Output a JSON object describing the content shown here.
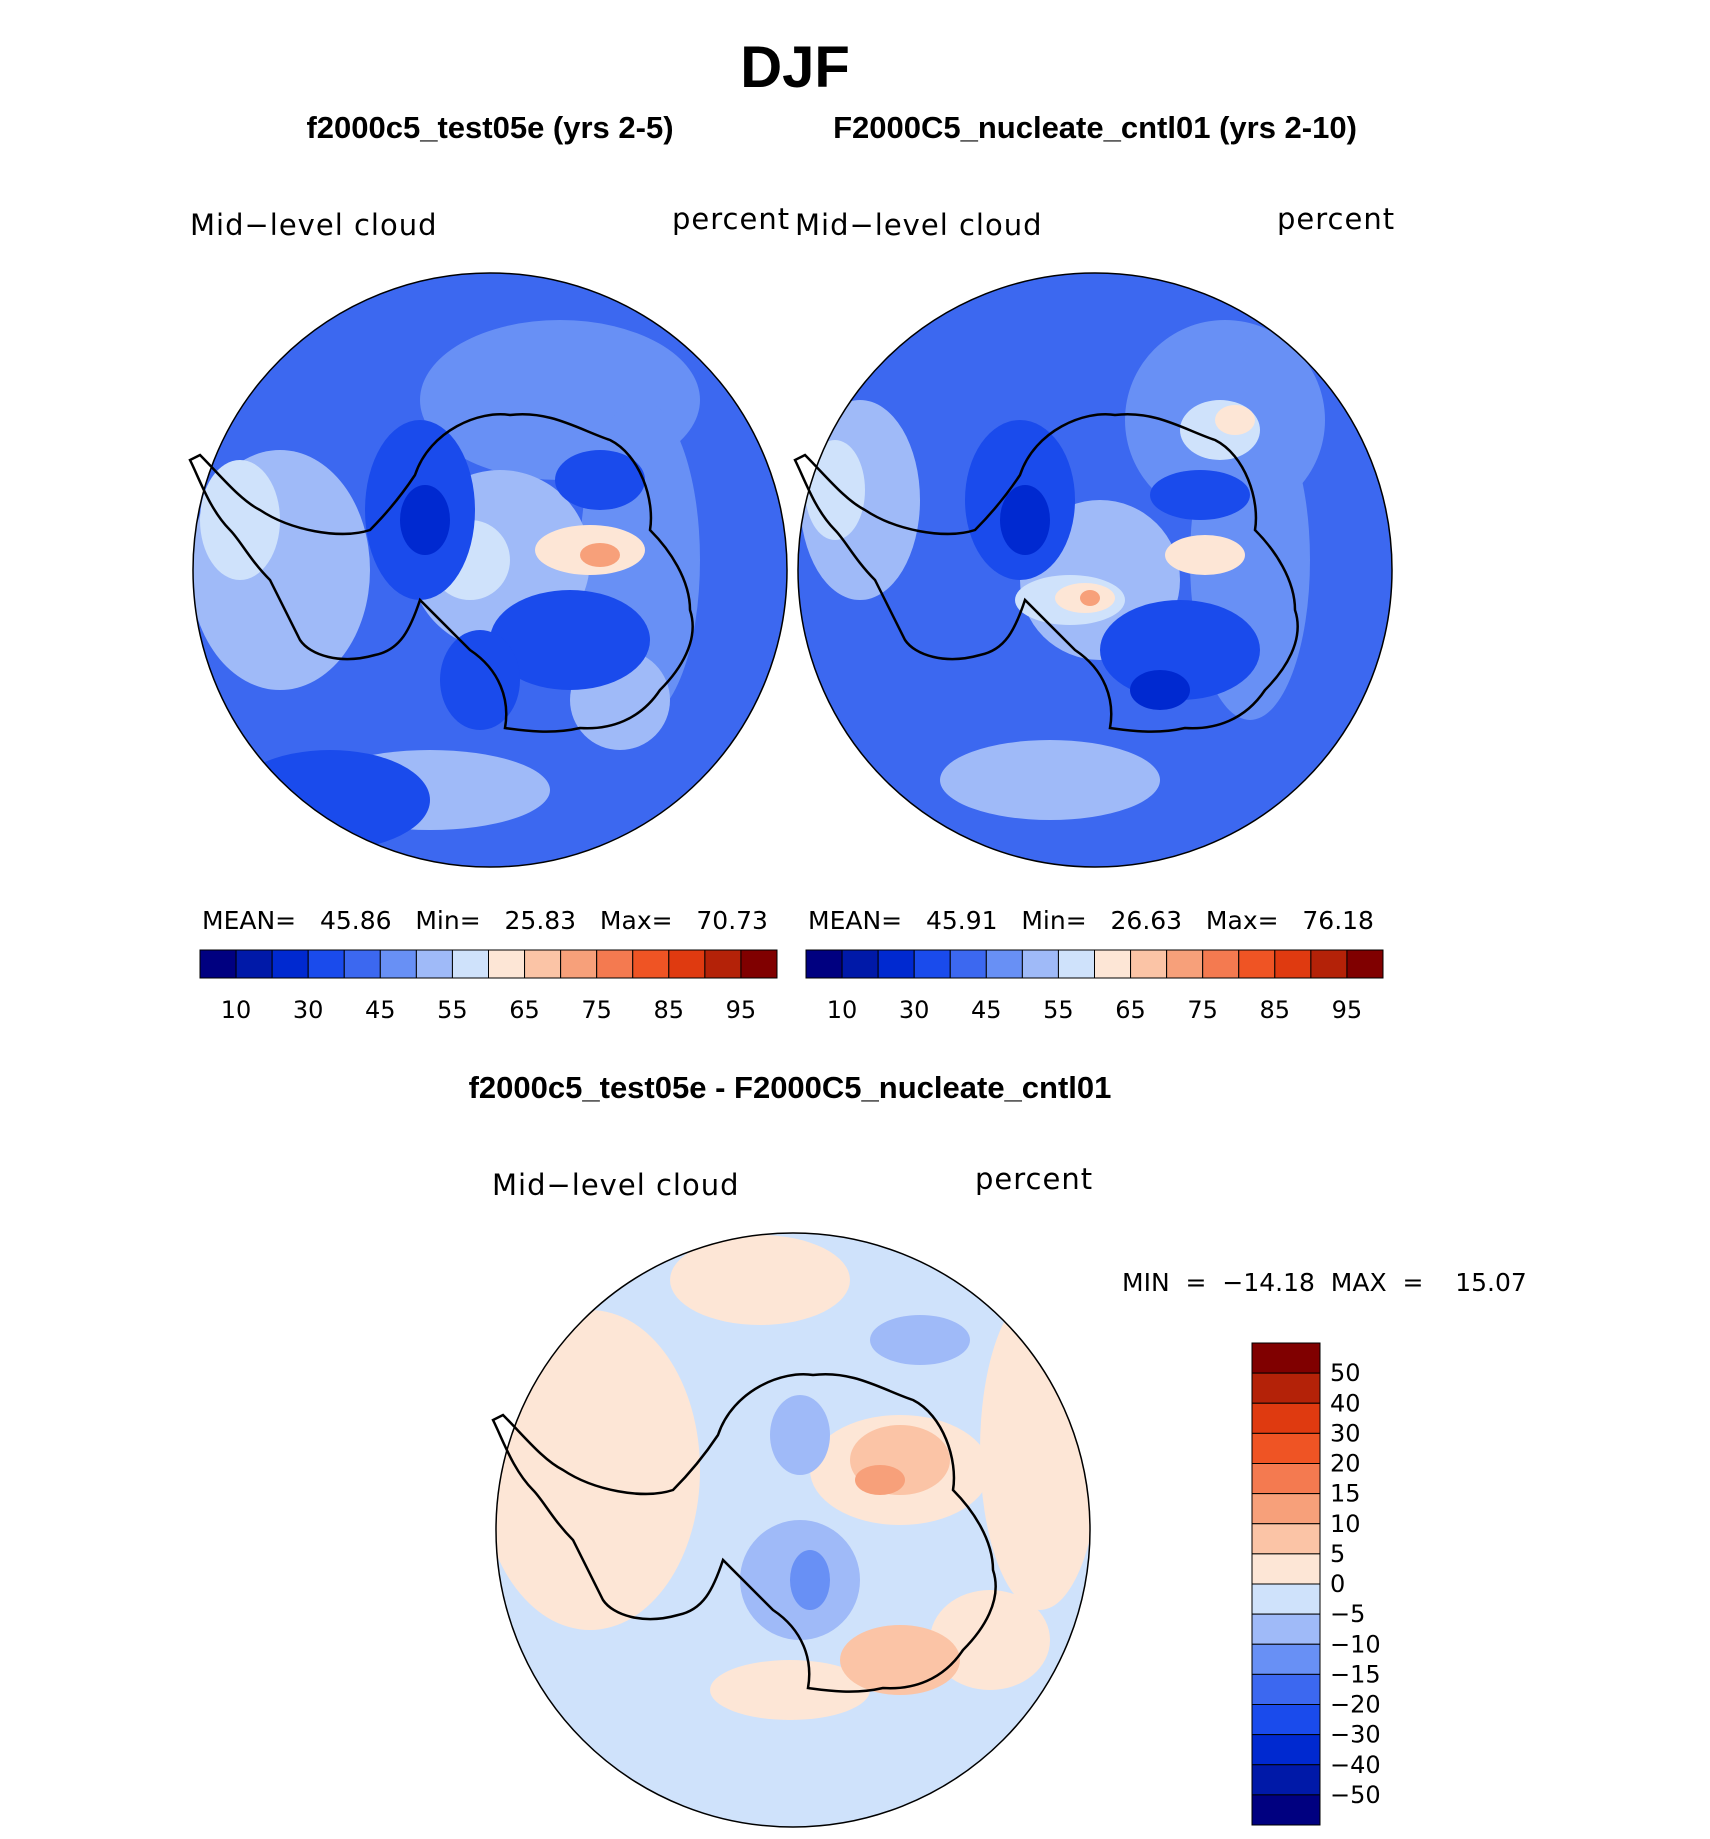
{
  "figure": {
    "title": "DJF",
    "panels": [
      {
        "title": "f2000c5_test05e (yrs 2-5)",
        "variable": "Mid−level cloud",
        "units": "percent",
        "stats": "MEAN=   45.86   Min=   25.83   Max=   70.73"
      },
      {
        "title": "F2000C5_nucleate_cntl01 (yrs 2-10)",
        "variable": "Mid−level cloud",
        "units": "percent",
        "stats": "MEAN=   45.91   Min=   26.63   Max=   76.18"
      },
      {
        "title": "f2000c5_test05e - F2000C5_nucleate_cntl01",
        "variable": "Mid−level cloud",
        "units": "percent",
        "stats": "MIN  =  −14.18  MAX  =    15.07"
      }
    ]
  },
  "chart_data": [
    {
      "type": "heatmap",
      "projection": "south polar stereographic",
      "title": "f2000c5_test05e (yrs 2-5)",
      "variable": "Mid-level cloud",
      "units": "percent",
      "mean": 45.86,
      "min": 25.83,
      "max": 70.73,
      "colorbar_levels": [
        10,
        20,
        30,
        40,
        45,
        50,
        55,
        60,
        65,
        70,
        75,
        80,
        85,
        90,
        95
      ],
      "colorbar_tick_labels": [
        "10",
        "30",
        "45",
        "55",
        "65",
        "75",
        "85",
        "95"
      ],
      "colors": [
        "#000080",
        "#0019a8",
        "#0029d0",
        "#1a4bec",
        "#3c68f0",
        "#6890f5",
        "#9fbaf8",
        "#cfe2fb",
        "#fde6d6",
        "#fbc4a6",
        "#f7a07a",
        "#f47a50",
        "#ef5424",
        "#df3a10",
        "#b42208",
        "#800000"
      ]
    },
    {
      "type": "heatmap",
      "projection": "south polar stereographic",
      "title": "F2000C5_nucleate_cntl01 (yrs 2-10)",
      "variable": "Mid-level cloud",
      "units": "percent",
      "mean": 45.91,
      "min": 26.63,
      "max": 76.18,
      "colorbar_levels": [
        10,
        20,
        30,
        40,
        45,
        50,
        55,
        60,
        65,
        70,
        75,
        80,
        85,
        90,
        95
      ],
      "colorbar_tick_labels": [
        "10",
        "30",
        "45",
        "55",
        "65",
        "75",
        "85",
        "95"
      ],
      "colors": [
        "#000080",
        "#0019a8",
        "#0029d0",
        "#1a4bec",
        "#3c68f0",
        "#6890f5",
        "#9fbaf8",
        "#cfe2fb",
        "#fde6d6",
        "#fbc4a6",
        "#f7a07a",
        "#f47a50",
        "#ef5424",
        "#df3a10",
        "#b42208",
        "#800000"
      ]
    },
    {
      "type": "heatmap",
      "projection": "south polar stereographic",
      "title": "f2000c5_test05e - F2000C5_nucleate_cntl01",
      "variable": "Mid-level cloud",
      "units": "percent",
      "min": -14.18,
      "max": 15.07,
      "colorbar_levels": [
        -50,
        -40,
        -30,
        -20,
        -15,
        -10,
        -5,
        0,
        5,
        10,
        15,
        20,
        30,
        40,
        50
      ],
      "colorbar_tick_labels": [
        "50",
        "40",
        "30",
        "20",
        "15",
        "10",
        "5",
        "0",
        "−5",
        "−10",
        "−15",
        "−20",
        "−30",
        "−40",
        "−50"
      ],
      "colors": [
        "#800000",
        "#b42208",
        "#df3a10",
        "#ef5424",
        "#f47a50",
        "#f7a07a",
        "#fbc4a6",
        "#fde6d6",
        "#cfe2fb",
        "#9fbaf8",
        "#6890f5",
        "#3c68f0",
        "#1a4bec",
        "#0029d0",
        "#0019a8",
        "#000080"
      ]
    }
  ]
}
